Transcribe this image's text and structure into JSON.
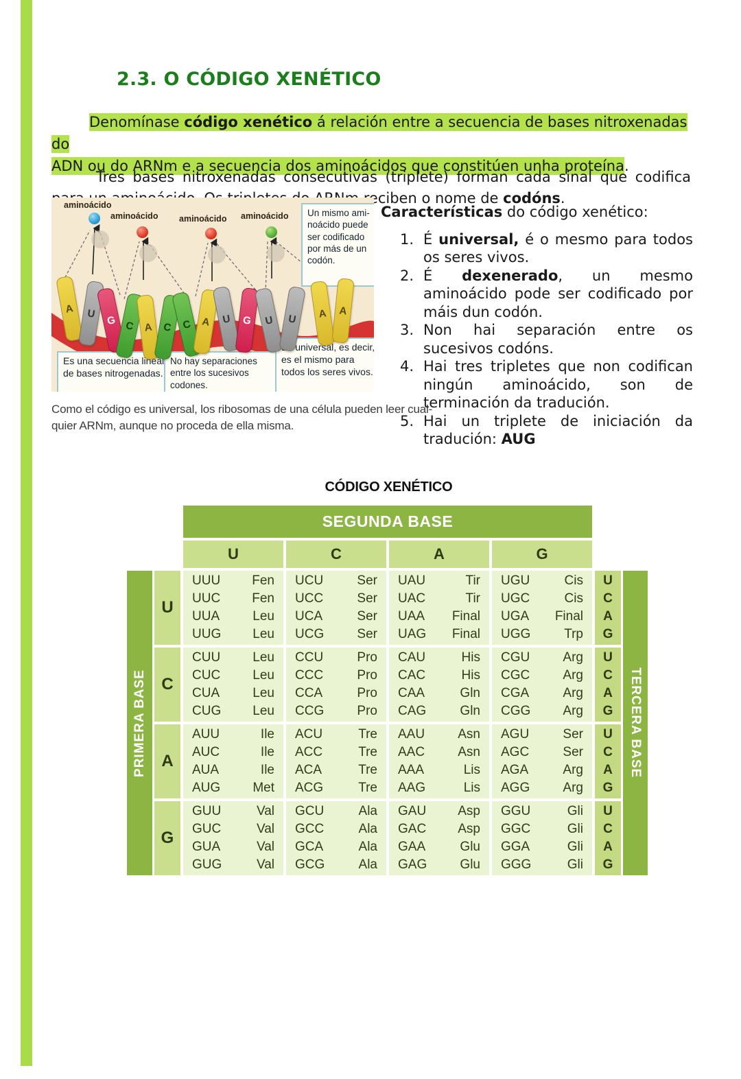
{
  "page": {
    "heading": "2.3. O CÓDIGO XENÉTICO"
  },
  "colors": {
    "heading_green": "#1b7d1b",
    "highlight_green": "#b3e24c",
    "margin_rule_green": "#a9dc4b",
    "table_header_green": "#8cb544",
    "table_letter_cell_green": "#cadf8d",
    "table_body_cell_green": "#eaf3d2",
    "figure_background": "#f6e9d2",
    "ribbon_red": "#d63333"
  },
  "intro": {
    "line1_pre": "Denomínase ",
    "line1_bold": "código xenético",
    "line1_post": " á relación entre a secuencia de bases nitroxenadas do",
    "line2_hl": "ADN ou do ARNm e a secuencia dos aminoácidos que constitúen unha proteína",
    "line2_end": "."
  },
  "para2": {
    "part1": "Tres bases nitroxenadas consecutivas (triplete) forman cada sinal que codifica para un aminoácido. Os tripletes do ARNm reciben o nome de ",
    "bold": "codóns",
    "end": "."
  },
  "figure": {
    "amino_label": "aminoácido",
    "balls": [
      "blue",
      "red",
      "red",
      "green"
    ],
    "sequence": [
      {
        "letter": "A",
        "color": "yellow"
      },
      {
        "letter": "U",
        "color": "gray"
      },
      {
        "letter": "G",
        "color": "pink"
      },
      {
        "letter": "C",
        "color": "green"
      },
      {
        "letter": "A",
        "color": "yellow"
      },
      {
        "letter": "C",
        "color": "green"
      },
      {
        "letter": "C",
        "color": "green"
      },
      {
        "letter": "A",
        "color": "yellow"
      },
      {
        "letter": "U",
        "color": "gray"
      },
      {
        "letter": "G",
        "color": "pink"
      },
      {
        "letter": "U",
        "color": "gray"
      },
      {
        "letter": "U",
        "color": "gray"
      },
      {
        "letter": "A",
        "color": "yellow"
      },
      {
        "letter": "A",
        "color": "yellow"
      }
    ],
    "note_top": "Un mismo ami-noácido puede ser codificado por más de un codón.",
    "note_left": "Es una secuencia lineal de bases nitrogenadas.",
    "note_mid": "No hay separaciones entre los sucesivos codones.",
    "note_right": "Es universal, es decir, es el mismo para todos los seres vivos."
  },
  "caption": {
    "line1": "Como el código es universal, los ribosomas de una célula pueden leer cual-",
    "line2": "quier ARNm, aunque no proceda de ella misma."
  },
  "characteristics": {
    "title_bold": "Características",
    "title_rest": " do código xenético:",
    "items": [
      {
        "num": "1.",
        "pre": "É ",
        "bold": "universal,",
        "post": " é o mesmo para todos os seres vivos."
      },
      {
        "num": "2.",
        "pre": "É ",
        "bold": "dexenerado",
        "post": ", un mesmo aminoácido pode ser codificado por máis dun codón."
      },
      {
        "num": "3.",
        "pre": "",
        "bold": "",
        "post": "Non hai separación entre os sucesivos codóns."
      },
      {
        "num": "4.",
        "pre": "",
        "bold": "",
        "post": "Hai tres tripletes que non codifican ningún aminoácido, son de terminación da tradución."
      },
      {
        "num": "5.",
        "pre": "Hai un triplete de iniciación da tradución: ",
        "bold": "AUG",
        "post": ""
      }
    ]
  },
  "table": {
    "title": "CÓDIGO XENÉTICO",
    "second_base_label": "SEGUNDA BASE",
    "first_base_label": "PRIMERA BASE",
    "third_base_label": "TERCERA BASE",
    "second_bases": [
      "U",
      "C",
      "A",
      "G"
    ],
    "third_bases": [
      "U",
      "C",
      "A",
      "G"
    ],
    "groups": [
      {
        "first": "U",
        "cols": [
          [
            [
              "UUU",
              "Fen"
            ],
            [
              "UUC",
              "Fen"
            ],
            [
              "UUA",
              "Leu"
            ],
            [
              "UUG",
              "Leu"
            ]
          ],
          [
            [
              "UCU",
              "Ser"
            ],
            [
              "UCC",
              "Ser"
            ],
            [
              "UCA",
              "Ser"
            ],
            [
              "UCG",
              "Ser"
            ]
          ],
          [
            [
              "UAU",
              "Tir"
            ],
            [
              "UAC",
              "Tir"
            ],
            [
              "UAA",
              "Final"
            ],
            [
              "UAG",
              "Final"
            ]
          ],
          [
            [
              "UGU",
              "Cis"
            ],
            [
              "UGC",
              "Cis"
            ],
            [
              "UGA",
              "Final"
            ],
            [
              "UGG",
              "Trp"
            ]
          ]
        ]
      },
      {
        "first": "C",
        "cols": [
          [
            [
              "CUU",
              "Leu"
            ],
            [
              "CUC",
              "Leu"
            ],
            [
              "CUA",
              "Leu"
            ],
            [
              "CUG",
              "Leu"
            ]
          ],
          [
            [
              "CCU",
              "Pro"
            ],
            [
              "CCC",
              "Pro"
            ],
            [
              "CCA",
              "Pro"
            ],
            [
              "CCG",
              "Pro"
            ]
          ],
          [
            [
              "CAU",
              "His"
            ],
            [
              "CAC",
              "His"
            ],
            [
              "CAA",
              "Gln"
            ],
            [
              "CAG",
              "Gln"
            ]
          ],
          [
            [
              "CGU",
              "Arg"
            ],
            [
              "CGC",
              "Arg"
            ],
            [
              "CGA",
              "Arg"
            ],
            [
              "CGG",
              "Arg"
            ]
          ]
        ]
      },
      {
        "first": "A",
        "cols": [
          [
            [
              "AUU",
              "Ile"
            ],
            [
              "AUC",
              "Ile"
            ],
            [
              "AUA",
              "Ile"
            ],
            [
              "AUG",
              "Met"
            ]
          ],
          [
            [
              "ACU",
              "Tre"
            ],
            [
              "ACC",
              "Tre"
            ],
            [
              "ACA",
              "Tre"
            ],
            [
              "ACG",
              "Tre"
            ]
          ],
          [
            [
              "AAU",
              "Asn"
            ],
            [
              "AAC",
              "Asn"
            ],
            [
              "AAA",
              "Lis"
            ],
            [
              "AAG",
              "Lis"
            ]
          ],
          [
            [
              "AGU",
              "Ser"
            ],
            [
              "AGC",
              "Ser"
            ],
            [
              "AGA",
              "Arg"
            ],
            [
              "AGG",
              "Arg"
            ]
          ]
        ]
      },
      {
        "first": "G",
        "cols": [
          [
            [
              "GUU",
              "Val"
            ],
            [
              "GUC",
              "Val"
            ],
            [
              "GUA",
              "Val"
            ],
            [
              "GUG",
              "Val"
            ]
          ],
          [
            [
              "GCU",
              "Ala"
            ],
            [
              "GCC",
              "Ala"
            ],
            [
              "GCA",
              "Ala"
            ],
            [
              "GCG",
              "Ala"
            ]
          ],
          [
            [
              "GAU",
              "Asp"
            ],
            [
              "GAC",
              "Asp"
            ],
            [
              "GAA",
              "Glu"
            ],
            [
              "GAG",
              "Glu"
            ]
          ],
          [
            [
              "GGU",
              "Gli"
            ],
            [
              "GGC",
              "Gli"
            ],
            [
              "GGA",
              "Gli"
            ],
            [
              "GGG",
              "Gli"
            ]
          ]
        ]
      }
    ]
  }
}
